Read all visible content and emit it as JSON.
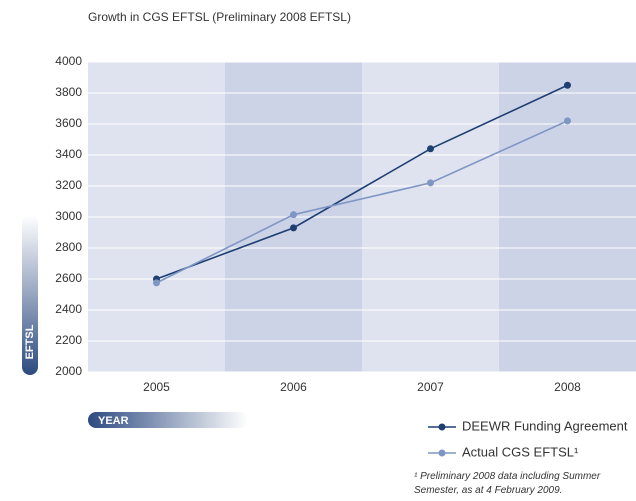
{
  "chart_data": {
    "type": "line",
    "title": "Growth in CGS EFTSL (Preliminary 2008 EFTSL)",
    "categories": [
      "2005",
      "2006",
      "2007",
      "2008"
    ],
    "series": [
      {
        "name": "DEEWR Funding Agreement",
        "color": "#1f3f73",
        "values": [
          2600,
          2930,
          3440,
          3850
        ]
      },
      {
        "name": "Actual CGS EFTSL¹",
        "color": "#7f96c4",
        "values": [
          2575,
          3015,
          3220,
          3620
        ]
      }
    ],
    "y_label": "EFTSL",
    "x_label": "YEAR",
    "ylim": [
      2000,
      4000
    ],
    "yticks": [
      2000,
      2200,
      2400,
      2600,
      2800,
      3000,
      3200,
      3400,
      3600,
      3800,
      4000
    ],
    "grid": true,
    "footnote": "¹ Preliminary 2008 data including Summer Semester, as at 4 February 2009."
  }
}
